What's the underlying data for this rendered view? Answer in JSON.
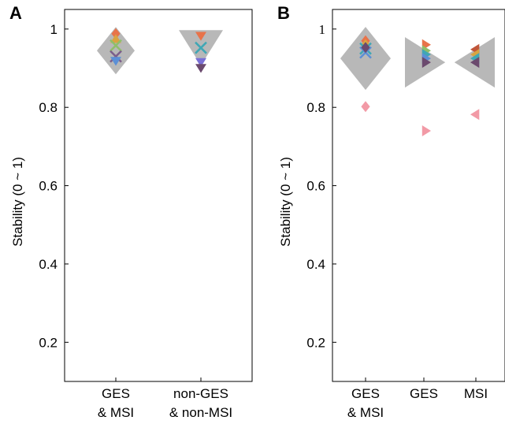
{
  "chart_data": [
    {
      "panel": "A",
      "type": "scatter",
      "ylabel": "Stability (0 ~ 1)",
      "ylim": [
        0.1,
        1.05
      ],
      "yticks": [
        0.2,
        0.4,
        0.6,
        0.8,
        1
      ],
      "ytick_labels": [
        "0.2",
        "0.4",
        "0.6",
        "0.8",
        "1"
      ],
      "categories": [
        [
          "GES",
          "& MSI"
        ],
        [
          "non-GES",
          "& non-MSI"
        ]
      ],
      "summary_markers": [
        {
          "category": 0,
          "shape": "diamond",
          "value": 0.945
        },
        {
          "category": 1,
          "shape": "triangle-down",
          "value": 0.955
        }
      ],
      "points": [
        {
          "category": 0,
          "shape": "diamond",
          "value": 0.988,
          "color": "#e8734a"
        },
        {
          "category": 0,
          "shape": "triangle-up",
          "value": 0.975,
          "color": "#d9a441"
        },
        {
          "category": 0,
          "shape": "x",
          "value": 0.958,
          "color": "#8fbf6a"
        },
        {
          "category": 0,
          "shape": "x",
          "value": 0.93,
          "color": "#7b5e8b"
        },
        {
          "category": 0,
          "shape": "triangle-down",
          "value": 0.918,
          "color": "#5b8fd6"
        },
        {
          "category": 1,
          "shape": "triangle-down",
          "value": 0.982,
          "color": "#e8734a"
        },
        {
          "category": 1,
          "shape": "x",
          "value": 0.952,
          "color": "#3fa7b5"
        },
        {
          "category": 1,
          "shape": "triangle-down",
          "value": 0.915,
          "color": "#7a6fd6"
        },
        {
          "category": 1,
          "shape": "triangle-down",
          "value": 0.9,
          "color": "#6b4a6e"
        }
      ]
    },
    {
      "panel": "B",
      "type": "scatter",
      "ylabel": "Stability (0 ~ 1)",
      "ylim": [
        0.1,
        1.05
      ],
      "yticks": [
        0.2,
        0.4,
        0.6,
        0.8,
        1
      ],
      "ytick_labels": [
        "0.2",
        "0.4",
        "0.6",
        "0.8",
        "1"
      ],
      "categories": [
        [
          "GES",
          "& MSI"
        ],
        [
          "GES"
        ],
        [
          "MSI"
        ]
      ],
      "summary_markers": [
        {
          "category": 0,
          "shape": "diamond",
          "value": 0.925
        },
        {
          "category": 1,
          "shape": "triangle-right",
          "value": 0.915
        },
        {
          "category": 2,
          "shape": "triangle-left",
          "value": 0.915
        }
      ],
      "points": [
        {
          "category": 0,
          "shape": "diamond",
          "value": 0.97,
          "color": "#e8734a"
        },
        {
          "category": 0,
          "shape": "diamond",
          "value": 0.96,
          "color": "#d9a441"
        },
        {
          "category": 0,
          "shape": "x",
          "value": 0.95,
          "color": "#3fa7b5"
        },
        {
          "category": 0,
          "shape": "x",
          "value": 0.94,
          "color": "#5b8fd6"
        },
        {
          "category": 0,
          "shape": "diamond",
          "value": 0.953,
          "color": "#6b4a6e"
        },
        {
          "category": 0,
          "shape": "diamond",
          "value": 0.802,
          "color": "#f29aa6"
        },
        {
          "category": 1,
          "shape": "triangle-right",
          "value": 0.96,
          "color": "#e8734a"
        },
        {
          "category": 1,
          "shape": "triangle-right",
          "value": 0.945,
          "color": "#8fbf6a"
        },
        {
          "category": 1,
          "shape": "triangle-right",
          "value": 0.935,
          "color": "#3fa7b5"
        },
        {
          "category": 1,
          "shape": "triangle-right",
          "value": 0.925,
          "color": "#5b8fd6"
        },
        {
          "category": 1,
          "shape": "triangle-right",
          "value": 0.915,
          "color": "#6b4a6e"
        },
        {
          "category": 1,
          "shape": "triangle-right",
          "value": 0.74,
          "color": "#f29aa6"
        },
        {
          "category": 2,
          "shape": "triangle-left",
          "value": 0.948,
          "color": "#c0563a"
        },
        {
          "category": 2,
          "shape": "triangle-left",
          "value": 0.935,
          "color": "#d9a441"
        },
        {
          "category": 2,
          "shape": "triangle-left",
          "value": 0.925,
          "color": "#3fa7b5"
        },
        {
          "category": 2,
          "shape": "triangle-left",
          "value": 0.915,
          "color": "#6b4a6e"
        },
        {
          "category": 2,
          "shape": "triangle-left",
          "value": 0.782,
          "color": "#f29aa6"
        }
      ]
    }
  ]
}
